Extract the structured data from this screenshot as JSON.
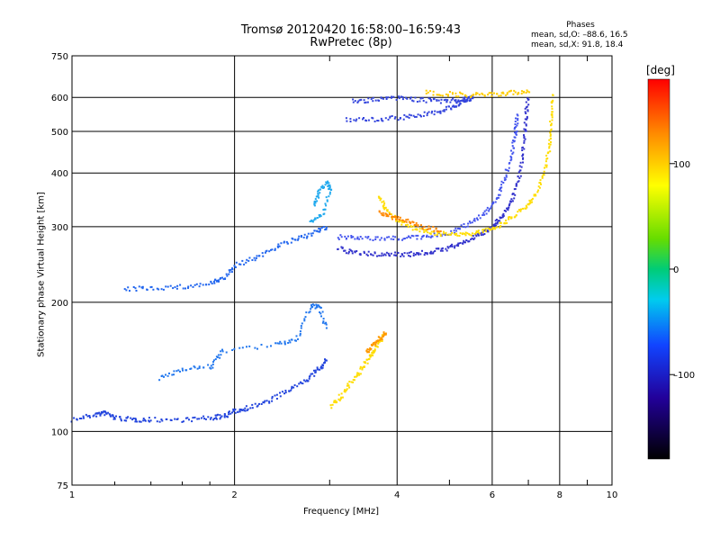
{
  "header": {
    "title_line1": "Tromsø 20120420 16:58:00–16:59:43",
    "title_line2": "RwPretec (8p)"
  },
  "phases": {
    "title": "Phases",
    "line_o": "mean, sd,O: –88.6, 16.5",
    "line_x": "mean, sd,X:  91.8, 18.4"
  },
  "colorbar": {
    "unit": "[deg]",
    "tick_labels": [
      "100",
      "0",
      "–100"
    ],
    "tick_values": [
      100,
      0,
      -100
    ],
    "range": [
      -180,
      180
    ]
  },
  "chart_data": {
    "type": "scatter",
    "title": "Tromsø 20120420 16:58:00–16:59:43",
    "subtitle": "RwPretec (8p)",
    "xlabel": "Frequency [MHz]",
    "ylabel": "Stationary phase Virtual Height [km]",
    "x_scale": "log",
    "y_scale": "log",
    "xlim": [
      1,
      10
    ],
    "ylim": [
      75,
      750
    ],
    "x_ticks": [
      1,
      2,
      4,
      6,
      8,
      10
    ],
    "x_tick_labels": [
      "1",
      "2",
      "4",
      "6",
      "8",
      "10"
    ],
    "y_ticks": [
      75,
      100,
      200,
      300,
      400,
      500,
      600,
      750
    ],
    "y_tick_labels": [
      "75",
      "100",
      "200",
      "300",
      "400",
      "500",
      "600",
      "750"
    ],
    "grid": true,
    "color_by": "phase [deg]",
    "series": [
      {
        "color": "#2244dd",
        "phase": -100,
        "points": [
          [
            1.0,
            107
          ],
          [
            1.1,
            110
          ],
          [
            1.15,
            111
          ],
          [
            1.2,
            108
          ],
          [
            1.3,
            107
          ],
          [
            1.4,
            107
          ],
          [
            1.6,
            107
          ],
          [
            1.8,
            108
          ],
          [
            1.9,
            109
          ],
          [
            2.0,
            112
          ],
          [
            2.1,
            114
          ],
          [
            2.3,
            118
          ],
          [
            2.5,
            125
          ],
          [
            2.7,
            132
          ],
          [
            2.85,
            140
          ],
          [
            2.95,
            147
          ]
        ]
      },
      {
        "color": "#2266ee",
        "phase": -95,
        "points": [
          [
            1.25,
            215
          ],
          [
            1.4,
            217
          ],
          [
            1.6,
            218
          ],
          [
            1.8,
            222
          ],
          [
            1.9,
            228
          ],
          [
            2.0,
            245
          ],
          [
            2.2,
            256
          ],
          [
            2.4,
            272
          ],
          [
            2.6,
            282
          ],
          [
            2.8,
            292
          ],
          [
            2.95,
            300
          ]
        ]
      },
      {
        "color": "#2277ee",
        "phase": -90,
        "points": [
          [
            1.45,
            133
          ],
          [
            1.6,
            141
          ],
          [
            1.8,
            142
          ],
          [
            1.9,
            155
          ],
          [
            2.4,
            160
          ],
          [
            2.6,
            165
          ],
          [
            2.75,
            195
          ],
          [
            2.85,
            198
          ],
          [
            2.95,
            175
          ]
        ]
      },
      {
        "color": "#3333cc",
        "phase": -105,
        "points": [
          [
            3.1,
            268
          ],
          [
            3.3,
            262
          ],
          [
            3.6,
            260
          ],
          [
            3.9,
            260
          ],
          [
            4.2,
            260
          ],
          [
            4.5,
            262
          ],
          [
            4.8,
            266
          ],
          [
            5.1,
            272
          ],
          [
            5.4,
            280
          ],
          [
            5.7,
            290
          ],
          [
            6.0,
            302
          ],
          [
            6.2,
            315
          ],
          [
            6.4,
            335
          ],
          [
            6.6,
            365
          ],
          [
            6.75,
            410
          ],
          [
            6.85,
            470
          ],
          [
            6.9,
            540
          ],
          [
            6.95,
            600
          ]
        ]
      },
      {
        "color": "#4455ee",
        "phase": -85,
        "points": [
          [
            3.1,
            285
          ],
          [
            3.4,
            283
          ],
          [
            3.8,
            283
          ],
          [
            4.2,
            284
          ],
          [
            4.6,
            286
          ],
          [
            5.0,
            292
          ],
          [
            5.4,
            305
          ],
          [
            5.8,
            325
          ],
          [
            6.1,
            350
          ],
          [
            6.3,
            390
          ],
          [
            6.5,
            445
          ],
          [
            6.6,
            500
          ],
          [
            6.65,
            550
          ]
        ]
      },
      {
        "color": "#3344dd",
        "phase": -100,
        "points": [
          [
            3.2,
            535
          ],
          [
            3.6,
            535
          ],
          [
            4.0,
            540
          ],
          [
            4.4,
            548
          ],
          [
            4.8,
            560
          ],
          [
            5.1,
            578
          ],
          [
            5.3,
            590
          ],
          [
            5.5,
            605
          ]
        ]
      },
      {
        "color": "#3344dd",
        "phase": -100,
        "points": [
          [
            3.3,
            590
          ],
          [
            3.6,
            595
          ],
          [
            4.0,
            600
          ],
          [
            4.4,
            595
          ],
          [
            4.8,
            590
          ],
          [
            5.2,
            595
          ],
          [
            5.5,
            600
          ]
        ]
      },
      {
        "color": "#ffdd00",
        "phase": 100,
        "points": [
          [
            3.7,
            355
          ],
          [
            3.8,
            330
          ],
          [
            4.0,
            310
          ],
          [
            4.3,
            298
          ],
          [
            4.6,
            292
          ],
          [
            5.0,
            289
          ],
          [
            5.4,
            290
          ],
          [
            5.8,
            295
          ],
          [
            6.2,
            305
          ],
          [
            6.5,
            318
          ],
          [
            6.9,
            335
          ],
          [
            7.2,
            360
          ],
          [
            7.5,
            410
          ],
          [
            7.65,
            470
          ],
          [
            7.7,
            540
          ],
          [
            7.75,
            610
          ]
        ]
      },
      {
        "color": "#ff8800",
        "phase": 140,
        "points": [
          [
            3.7,
            325
          ],
          [
            3.9,
            318
          ],
          [
            4.1,
            312
          ],
          [
            4.4,
            302
          ],
          [
            4.8,
            294
          ]
        ]
      },
      {
        "color": "#ffdd00",
        "phase": 100,
        "points": [
          [
            3.0,
            115
          ],
          [
            3.15,
            122
          ],
          [
            3.3,
            132
          ],
          [
            3.45,
            142
          ],
          [
            3.55,
            150
          ],
          [
            3.65,
            158
          ],
          [
            3.75,
            168
          ]
        ]
      },
      {
        "color": "#ff9900",
        "phase": 130,
        "points": [
          [
            3.5,
            153
          ],
          [
            3.6,
            160
          ],
          [
            3.7,
            165
          ],
          [
            3.8,
            170
          ]
        ]
      },
      {
        "color": "#ffcc00",
        "phase": 110,
        "points": [
          [
            4.5,
            618
          ],
          [
            5.0,
            614
          ],
          [
            5.5,
            610
          ],
          [
            6.0,
            612
          ],
          [
            6.5,
            618
          ],
          [
            7.0,
            620
          ]
        ]
      },
      {
        "color": "#22aaee",
        "phase": -40,
        "points": [
          [
            2.8,
            340
          ],
          [
            2.85,
            360
          ],
          [
            2.95,
            380
          ],
          [
            3.0,
            370
          ],
          [
            2.9,
            320
          ],
          [
            2.75,
            310
          ]
        ]
      }
    ]
  }
}
